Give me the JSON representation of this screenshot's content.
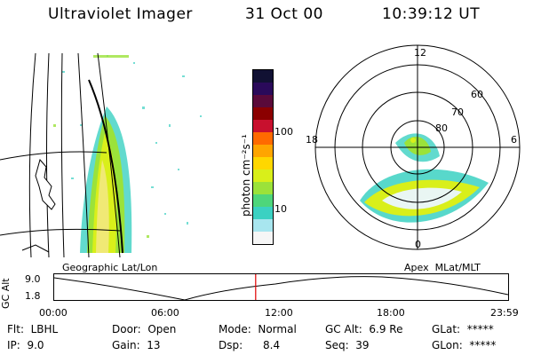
{
  "header": {
    "instrument": "Ultraviolet Imager",
    "date": "31 Oct 00",
    "time": "10:39:12 UT"
  },
  "colorbar": {
    "unit_label": "photon cm⁻²s⁻¹",
    "ticks": [
      "100",
      "10"
    ],
    "colors": [
      "#111133",
      "#2a0a5a",
      "#5a0a3a",
      "#8b0000",
      "#c8102e",
      "#ff6a00",
      "#ffa500",
      "#ffd700",
      "#d9ef1a",
      "#9be23a",
      "#4ed67b",
      "#3bd1c2",
      "#a8e6ef",
      "#f6f6f6"
    ]
  },
  "left_map": {
    "caption": "Geographic Lat/Lon"
  },
  "right_map": {
    "caption": "Apex  MLat/MLT",
    "mlt_labels": {
      "top": "12",
      "left": "18",
      "right": "6",
      "bottom": "0"
    },
    "lat_labels": [
      "60",
      "70",
      "80"
    ]
  },
  "timeline": {
    "ylabel": "GC Alt",
    "yticks": [
      "9.0",
      "1.8"
    ],
    "xticks": [
      "00:00",
      "06:00",
      "12:00",
      "18:00",
      "23:59"
    ],
    "marker_fraction": 0.445
  },
  "footer": {
    "flt": "Flt:  LBHL",
    "ip": "IP:  9.0",
    "door": "Door:  Open",
    "gain": "Gain:  13",
    "mode": "Mode:  Normal",
    "dsp": "Dsp:      8.4",
    "gc_alt": "GC Alt:  6.9 Re",
    "seq": "Seq:  39",
    "glat": "GLat:  *****",
    "glon": "GLon:  *****"
  }
}
